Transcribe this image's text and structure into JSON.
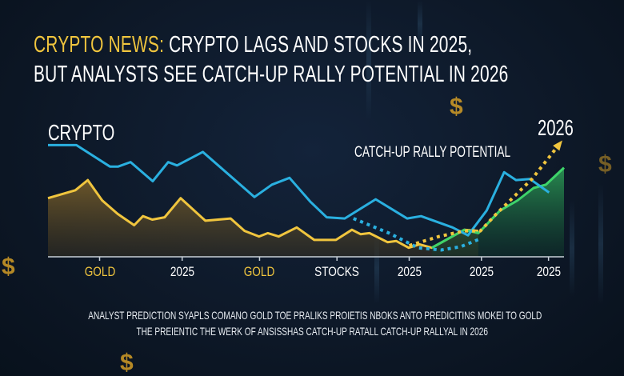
{
  "headline": {
    "prefix": "CRYPTO NEWS:",
    "line1_rest": "CRYPTO LAGS AND STOCKS IN 2025,",
    "line2": "BUT ANALYSTS SEE CATCH-UP RALLY POTENTIAL IN 2026"
  },
  "caption": {
    "line1": "ANALYST PREDICTION SYAPLS COMANO GOLD TOE PRALIKS PROIETIS NBOKS ANTO PREDICITINS MOKEI TO GOLD",
    "line2": "THE PREIENTIC THE WERK OF ANSISSHAS CATCH-UP RATALL CATCH-UP RALLYAL IN 2026"
  },
  "colors": {
    "background": "#0d1826",
    "crypto": "#2ab0e0",
    "gold": "#f0c53e",
    "green": "#3ed46a",
    "text": "#ffffff"
  },
  "icons": [
    "dollar-sign-icon",
    "arrow-up-icon"
  ],
  "chart_data": {
    "type": "line",
    "title": "",
    "series_label": "CRYPTO",
    "year_label": "2026",
    "annotation": "CATCH-UP RALLY POTENTIAL",
    "x_ticks": [
      {
        "x": 10,
        "label": "GOLD",
        "style": "gold"
      },
      {
        "x": 26,
        "label": "2025",
        "style": "white"
      },
      {
        "x": 41,
        "label": "GOLD",
        "style": "gold"
      },
      {
        "x": 56,
        "label": "STOCKS",
        "style": "white"
      },
      {
        "x": 70,
        "label": "2025",
        "style": "white"
      },
      {
        "x": 84,
        "label": "2025",
        "style": "white"
      },
      {
        "x": 97,
        "label": "2025",
        "style": "white"
      }
    ],
    "xlim": [
      0,
      100
    ],
    "ylim": [
      0,
      100
    ],
    "grid": false,
    "series": [
      {
        "id": "crypto",
        "style": "solid",
        "color": "#2ab0e0",
        "points": [
          [
            0,
            99
          ],
          [
            5.5,
            99
          ],
          [
            12,
            80
          ],
          [
            13.6,
            80
          ],
          [
            16,
            84
          ],
          [
            20.3,
            67
          ],
          [
            23.3,
            84
          ],
          [
            25,
            81
          ],
          [
            30,
            93
          ],
          [
            40,
            53
          ],
          [
            43.4,
            64
          ],
          [
            46.8,
            70
          ],
          [
            50.8,
            49
          ],
          [
            54,
            35
          ],
          [
            57.5,
            34
          ],
          [
            63.5,
            51
          ],
          [
            69.6,
            34
          ],
          [
            72.3,
            36
          ],
          [
            78.4,
            26
          ],
          [
            81.4,
            19
          ],
          [
            85,
            41
          ],
          [
            88.4,
            75
          ],
          [
            90.7,
            68
          ],
          [
            93.4,
            69
          ],
          [
            97.1,
            57
          ]
        ]
      },
      {
        "id": "gold",
        "style": "area",
        "color": "#f0c53e",
        "points": [
          [
            0,
            52
          ],
          [
            5.3,
            59
          ],
          [
            7.7,
            68
          ],
          [
            10.5,
            50
          ],
          [
            13.5,
            38
          ],
          [
            16.7,
            28
          ],
          [
            18.4,
            36
          ],
          [
            20.2,
            33
          ],
          [
            22.6,
            35
          ],
          [
            25.7,
            52
          ],
          [
            30.5,
            32
          ],
          [
            35.4,
            34
          ],
          [
            38.1,
            23
          ],
          [
            40.9,
            18
          ],
          [
            42.6,
            21
          ],
          [
            44.7,
            18
          ],
          [
            48.2,
            26
          ],
          [
            51.6,
            15
          ],
          [
            55.8,
            15
          ],
          [
            58.9,
            24
          ],
          [
            60.6,
            20
          ],
          [
            62.3,
            21
          ],
          [
            65.8,
            13
          ],
          [
            67.5,
            14
          ],
          [
            69.9,
            8
          ],
          [
            72,
            11
          ],
          [
            74.4,
            8
          ],
          [
            80.7,
            24
          ],
          [
            83.4,
            23
          ]
        ]
      },
      {
        "id": "green",
        "style": "area",
        "color": "#3ed46a",
        "points": [
          [
            74.4,
            8
          ],
          [
            80.7,
            24
          ],
          [
            83.4,
            21
          ],
          [
            87.6,
            41
          ],
          [
            91,
            50
          ],
          [
            94.1,
            61
          ],
          [
            96.5,
            64
          ],
          [
            100,
            79
          ]
        ]
      },
      {
        "id": "gold-projection",
        "style": "dotted",
        "color": "#f0c53e",
        "points": [
          [
            70,
            10
          ],
          [
            75.8,
            18
          ],
          [
            80.7,
            23
          ],
          [
            83.8,
            23
          ],
          [
            86.9,
            38
          ],
          [
            93.8,
            69
          ],
          [
            99.3,
            101
          ]
        ]
      },
      {
        "id": "crypto-projection",
        "style": "dotted",
        "color": "#2ab0e0",
        "points": [
          [
            59.2,
            34
          ],
          [
            66.1,
            21
          ],
          [
            71.7,
            8
          ],
          [
            76.2,
            6
          ],
          [
            80,
            9
          ],
          [
            83.8,
            16
          ]
        ]
      }
    ]
  }
}
